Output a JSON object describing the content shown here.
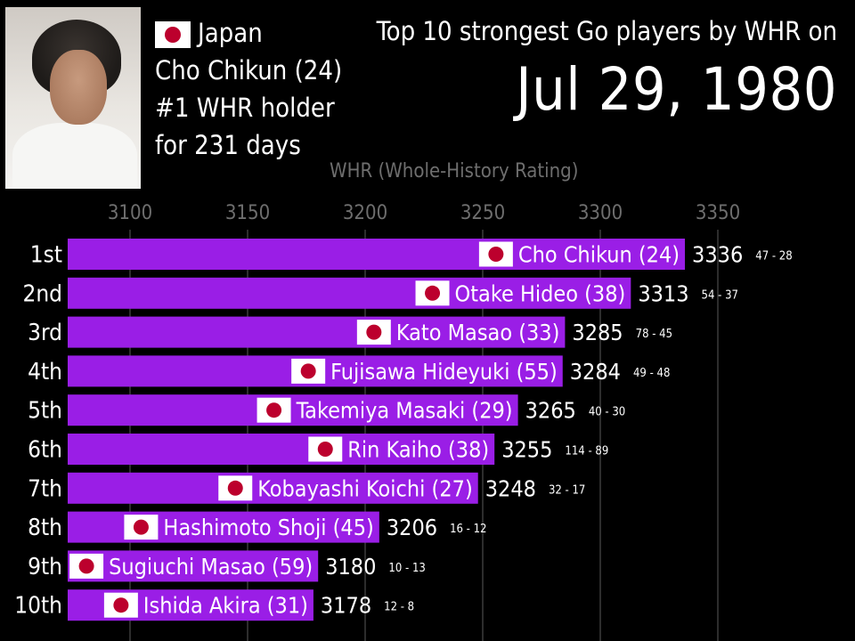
{
  "header": {
    "country": "Japan",
    "player_line": "Cho Chikun (24)",
    "holder_line": "#1 WHR holder",
    "days_line": "for 231 days",
    "title": "Top 10 strongest Go players by WHR on",
    "date": "Jul 29, 1980"
  },
  "colors": {
    "bar": "#9a1ee6",
    "background": "#000000",
    "flag_red": "#bc002d",
    "grid": "#5a5a5a"
  },
  "chart_data": {
    "type": "bar",
    "orientation": "horizontal",
    "xlabel": "WHR (Whole-History Rating)",
    "xlim": [
      3075,
      3375
    ],
    "xticks": [
      3100,
      3150,
      3200,
      3250,
      3300,
      3350
    ],
    "grid": true,
    "ranks": [
      "1st",
      "2nd",
      "3rd",
      "4th",
      "5th",
      "6th",
      "7th",
      "8th",
      "9th",
      "10th"
    ],
    "categories": [
      "Cho Chikun (24)",
      "Otake Hideo (38)",
      "Kato Masao (33)",
      "Fujisawa Hideyuki (55)",
      "Takemiya Masaki (29)",
      "Rin Kaiho (38)",
      "Kobayashi Koichi (27)",
      "Hashimoto Shoji (45)",
      "Sugiuchi Masao (59)",
      "Ishida Akira (31)"
    ],
    "values": [
      3336,
      3313,
      3285,
      3284,
      3265,
      3255,
      3248,
      3206,
      3180,
      3178
    ],
    "records": [
      "47 - 28",
      "54 - 37",
      "78 - 45",
      "49 - 48",
      "40 - 30",
      "114 - 89",
      "32 - 17",
      "16 - 12",
      "10 - 13",
      "12 - 8"
    ],
    "flags": [
      "japan",
      "japan",
      "japan",
      "japan",
      "japan",
      "japan",
      "japan",
      "japan",
      "japan",
      "japan"
    ]
  }
}
